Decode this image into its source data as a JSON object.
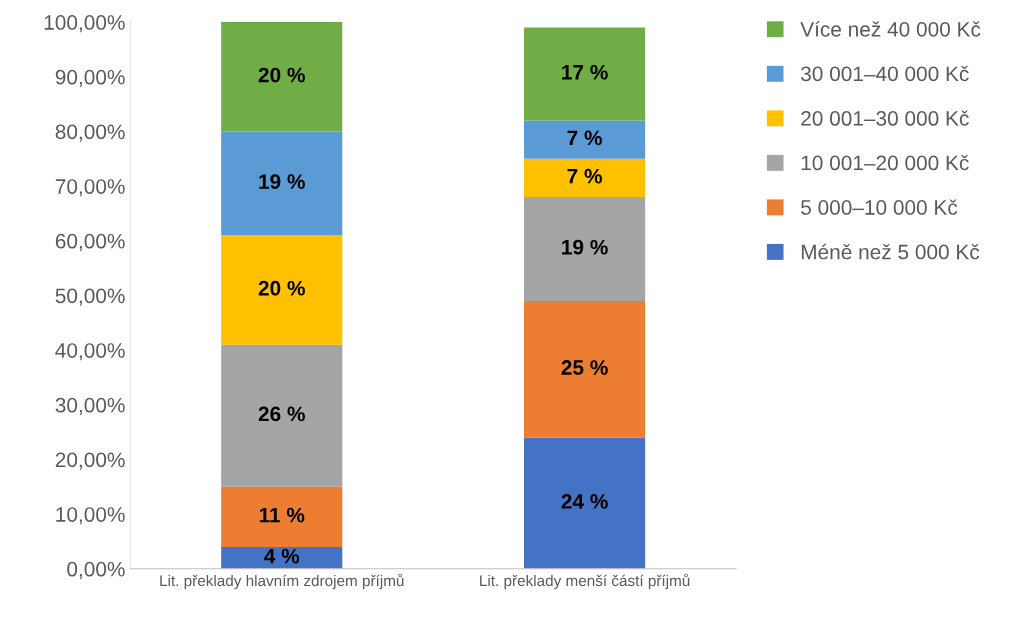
{
  "chart_data": {
    "type": "bar",
    "stacked": true,
    "categories": [
      "Lit. překlady hlavním zdrojem příjmů",
      "Lit. překlady menší částí příjmů"
    ],
    "series": [
      {
        "name": "Méně než 5 000 Kč",
        "color": "#4472c4",
        "values": [
          4,
          24
        ],
        "value_labels": [
          "4 %",
          "24 %"
        ]
      },
      {
        "name": "5 000–10 000 Kč",
        "color": "#ed7d31",
        "values": [
          11,
          25
        ],
        "value_labels": [
          "11 %",
          "25 %"
        ]
      },
      {
        "name": "10 001–20 000 Kč",
        "color": "#a5a5a5",
        "values": [
          26,
          19
        ],
        "value_labels": [
          "26 %",
          "19 %"
        ]
      },
      {
        "name": "20 001–30 000 Kč",
        "color": "#ffc000",
        "values": [
          20,
          7
        ],
        "value_labels": [
          "20 %",
          "7 %"
        ]
      },
      {
        "name": "30 001–40 000 Kč",
        "color": "#5b9bd5",
        "values": [
          19,
          7
        ],
        "value_labels": [
          "19 %",
          "7 %"
        ]
      },
      {
        "name": "Více než 40 000 Kč",
        "color": "#70ad47",
        "values": [
          20,
          17
        ],
        "value_labels": [
          "20 %",
          "17 %"
        ]
      }
    ],
    "ylim": [
      0,
      100
    ],
    "yticks": [
      {
        "value": 0,
        "label": "0,00%"
      },
      {
        "value": 10,
        "label": "10,00%"
      },
      {
        "value": 20,
        "label": "20,00%"
      },
      {
        "value": 30,
        "label": "30,00%"
      },
      {
        "value": 40,
        "label": "40,00%"
      },
      {
        "value": 50,
        "label": "50,00%"
      },
      {
        "value": 60,
        "label": "60,00%"
      },
      {
        "value": 70,
        "label": "70,00%"
      },
      {
        "value": 80,
        "label": "80,00%"
      },
      {
        "value": 90,
        "label": "90,00%"
      },
      {
        "value": 100,
        "label": "100,00%"
      }
    ],
    "grid": false,
    "legend": "right"
  }
}
